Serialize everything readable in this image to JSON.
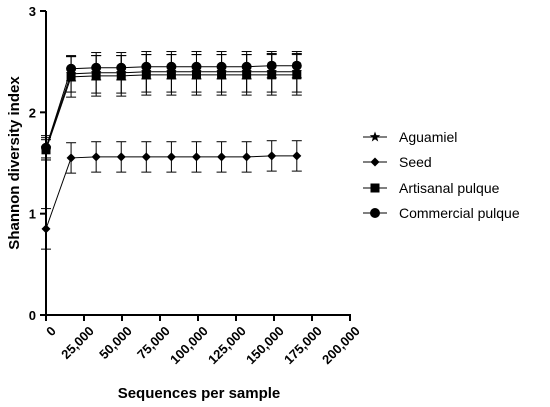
{
  "chart_data": {
    "type": "line",
    "title": "",
    "xlabel": "Sequences per sample",
    "ylabel": "Shannon diversity index",
    "xlim": [
      0,
      200000
    ],
    "ylim": [
      0,
      3
    ],
    "x_ticks": [
      0,
      25000,
      50000,
      75000,
      100000,
      125000,
      150000,
      175000,
      200000
    ],
    "x_tick_labels": [
      "0",
      "25,000",
      "50,000",
      "75,000",
      "100,000",
      "125,000",
      "150,000",
      "175,000",
      "200,000"
    ],
    "y_ticks": [
      0,
      1,
      2,
      3
    ],
    "y_tick_labels": [
      "0",
      "1",
      "2",
      "3"
    ],
    "grid": false,
    "legend_position": "right",
    "x": [
      1,
      16500,
      33000,
      49500,
      66000,
      82500,
      99000,
      115500,
      132000,
      148500,
      165000
    ],
    "series": [
      {
        "name": "Aguamiel",
        "marker": "star",
        "color": "#000000",
        "values": [
          1.65,
          2.38,
          2.39,
          2.39,
          2.4,
          2.4,
          2.4,
          2.4,
          2.4,
          2.4,
          2.4
        ],
        "error": [
          0.1,
          0.18,
          0.2,
          0.2,
          0.2,
          0.2,
          0.2,
          0.2,
          0.2,
          0.2,
          0.2
        ]
      },
      {
        "name": "Seed",
        "marker": "diamond",
        "color": "#000000",
        "values": [
          0.85,
          1.55,
          1.56,
          1.56,
          1.56,
          1.56,
          1.56,
          1.56,
          1.56,
          1.57,
          1.57
        ],
        "error": [
          0.2,
          0.15,
          0.15,
          0.15,
          0.15,
          0.15,
          0.15,
          0.15,
          0.15,
          0.15,
          0.15
        ]
      },
      {
        "name": "Artisanal pulque",
        "marker": "square",
        "color": "#000000",
        "values": [
          1.63,
          2.35,
          2.36,
          2.36,
          2.37,
          2.37,
          2.37,
          2.37,
          2.37,
          2.37,
          2.37
        ],
        "error": [
          0.1,
          0.2,
          0.2,
          0.2,
          0.2,
          0.2,
          0.2,
          0.2,
          0.2,
          0.2,
          0.2
        ]
      },
      {
        "name": "Commercial pulque",
        "marker": "circle",
        "color": "#000000",
        "values": [
          1.65,
          2.43,
          2.44,
          2.44,
          2.45,
          2.45,
          2.45,
          2.45,
          2.45,
          2.46,
          2.46
        ],
        "error": [
          0.12,
          0.12,
          0.12,
          0.12,
          0.12,
          0.12,
          0.12,
          0.12,
          0.12,
          0.12,
          0.12
        ]
      }
    ]
  }
}
